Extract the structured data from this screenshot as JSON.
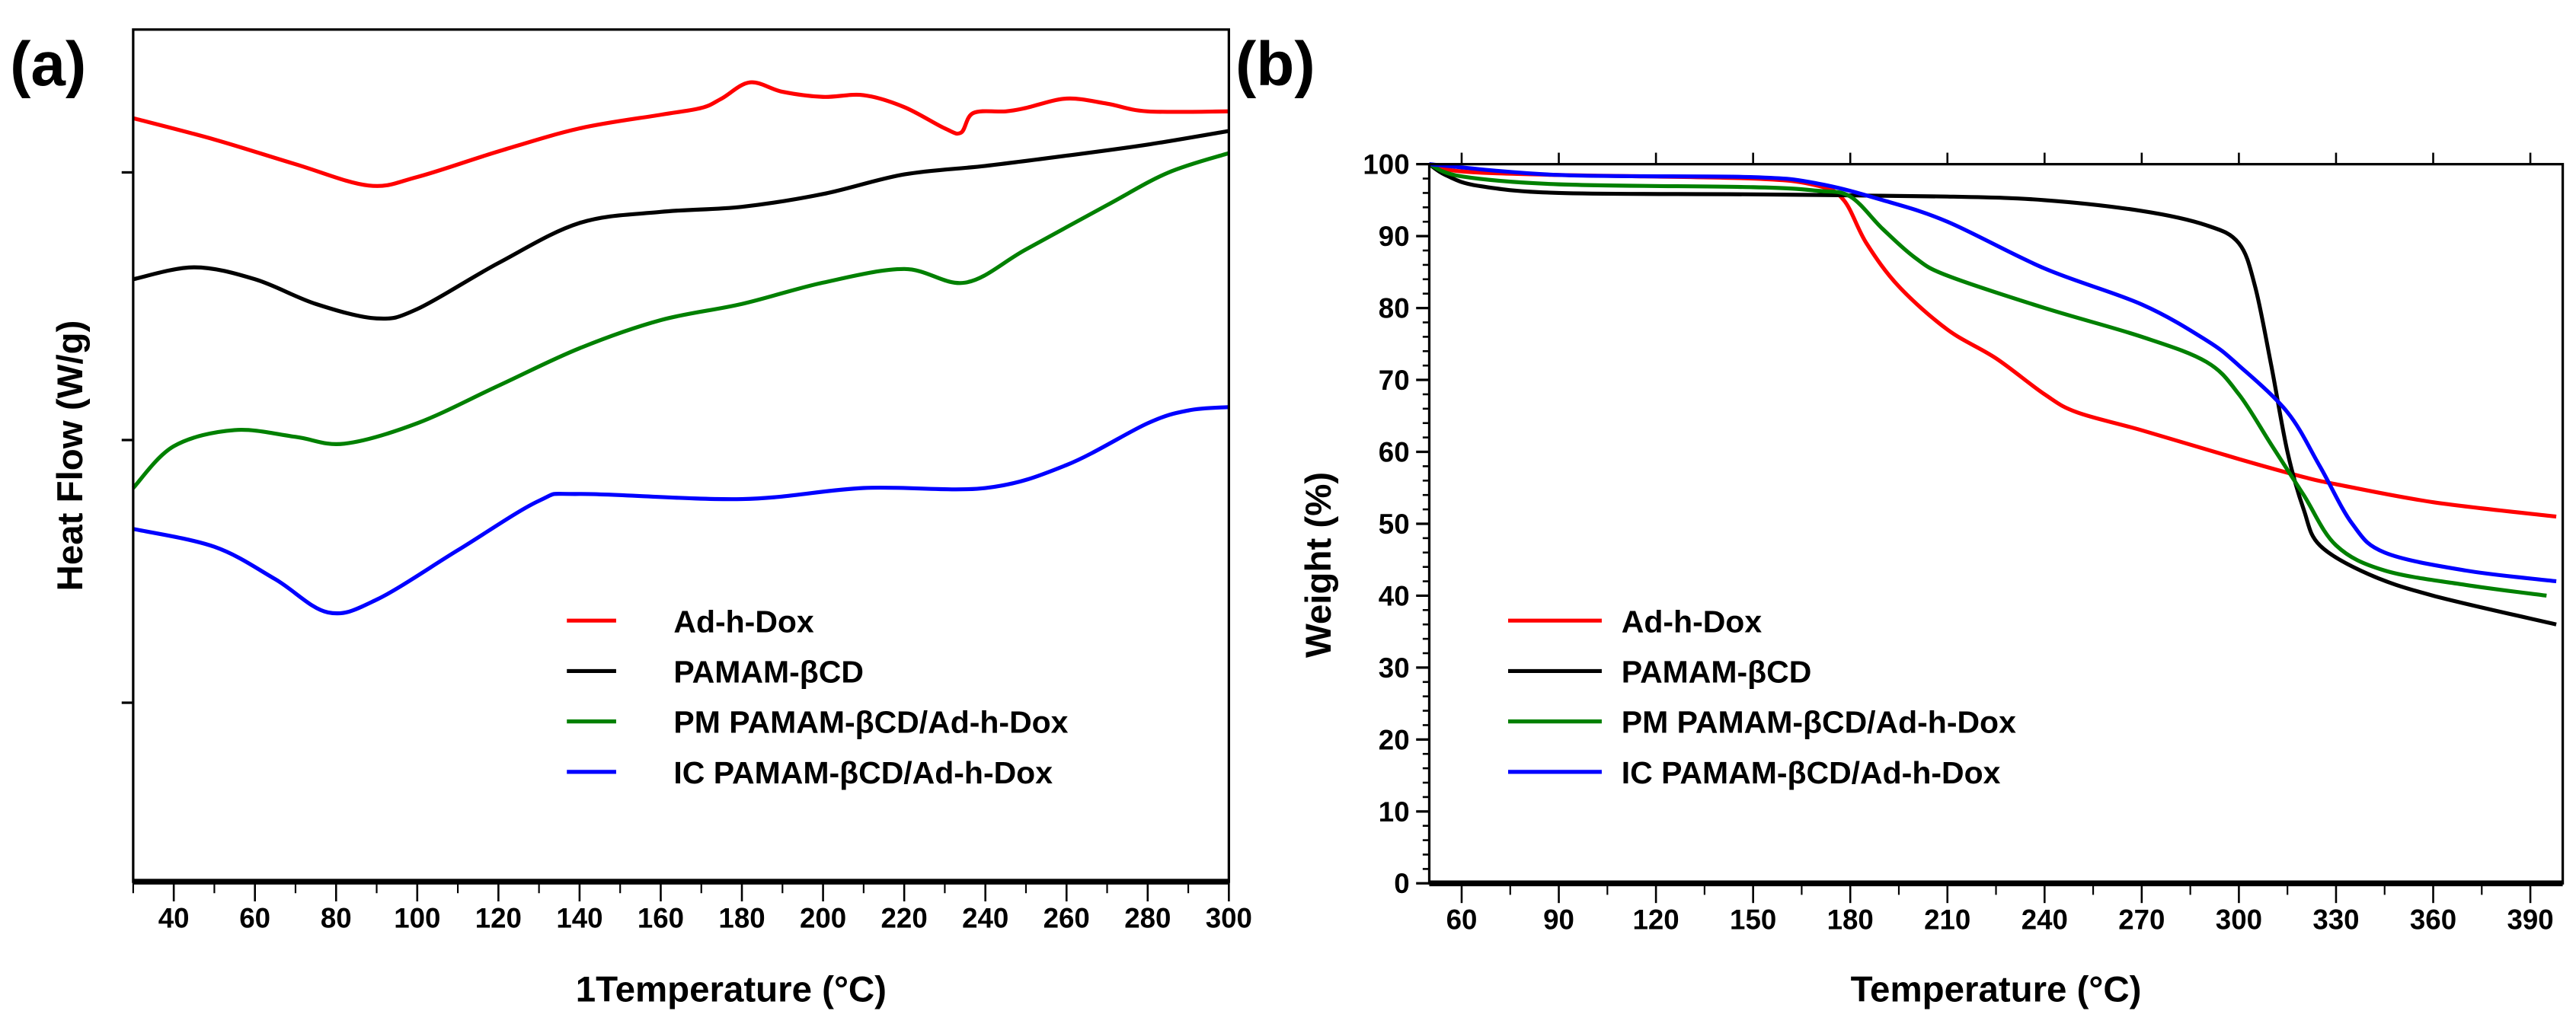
{
  "chart_data": [
    {
      "panel_label": "(a)",
      "type": "line",
      "xlabel": "1Temperature (°C)",
      "ylabel": "Heat Flow (W/g)",
      "xlim": [
        30,
        300
      ],
      "ylim": [
        0,
        100
      ],
      "y_units": "arbitrary (no tick labels)",
      "x_ticks": [
        "40",
        "60",
        "80",
        "100",
        "120",
        "140",
        "160",
        "180",
        "200",
        "220",
        "240",
        "260",
        "280",
        "300"
      ],
      "grid": false,
      "legend_placement": "bottom-center",
      "series": [
        {
          "name": "Ad-h-Dox",
          "color": "#ff0000",
          "x": [
            30,
            50,
            70,
            88,
            100,
            120,
            140,
            160,
            170,
            175,
            182,
            190,
            200,
            210,
            220,
            230,
            234,
            237,
            245,
            250,
            260,
            270,
            280,
            300
          ],
          "y": [
            89.6,
            87.1,
            84.2,
            81.7,
            82.7,
            85.7,
            88.4,
            90.0,
            90.8,
            91.9,
            93.8,
            92.7,
            92.1,
            92.3,
            90.9,
            88.4,
            87.9,
            90.2,
            90.4,
            90.8,
            91.9,
            91.3,
            90.4,
            90.4
          ]
        },
        {
          "name": "PAMAM-βCD",
          "color": "#000000",
          "x": [
            30,
            45,
            60,
            75,
            90,
            100,
            120,
            140,
            160,
            180,
            200,
            220,
            240,
            260,
            280,
            300
          ],
          "y": [
            70.7,
            72.1,
            70.7,
            67.8,
            66.1,
            67.2,
            72.6,
            77.3,
            78.6,
            79.2,
            80.7,
            83.0,
            84.0,
            85.2,
            86.5,
            88.1
          ]
        },
        {
          "name": "PM PAMAM-βCD/Ad-h-Dox",
          "color": "#008000",
          "x": [
            30,
            40,
            55,
            70,
            82,
            100,
            120,
            140,
            160,
            180,
            200,
            220,
            235,
            250,
            270,
            285,
            300
          ],
          "y": [
            46.2,
            51.1,
            53.0,
            52.2,
            51.4,
            53.8,
            58.2,
            62.6,
            65.9,
            67.8,
            70.3,
            71.9,
            70.3,
            74.2,
            79.4,
            83.2,
            85.5
          ]
        },
        {
          "name": "IC PAMAM-βCD/Ad-h-Dox",
          "color": "#0000ff",
          "x": [
            30,
            50,
            65,
            78,
            90,
            110,
            130,
            140,
            180,
            210,
            240,
            260,
            280,
            290,
            300
          ],
          "y": [
            41.4,
            39.3,
            35.5,
            31.6,
            33.1,
            38.9,
            44.7,
            45.5,
            44.9,
            46.2,
            46.2,
            48.9,
            53.8,
            55.3,
            55.7
          ]
        }
      ]
    },
    {
      "panel_label": "(b)",
      "type": "line",
      "xlabel": "Temperature (°C)",
      "ylabel": "Weight (%)",
      "xlim": [
        50,
        400
      ],
      "ylim": [
        0,
        100
      ],
      "x_ticks": [
        "60",
        "90",
        "120",
        "150",
        "180",
        "210",
        "240",
        "270",
        "300",
        "330",
        "360",
        "390"
      ],
      "y_ticks": [
        "0",
        "10",
        "20",
        "30",
        "40",
        "50",
        "60",
        "70",
        "80",
        "90",
        "100"
      ],
      "grid": false,
      "legend_placement": "bottom-left",
      "series": [
        {
          "name": "Ad-h-Dox",
          "color": "#ff0000",
          "x": [
            50,
            60,
            90,
            150,
            170,
            178,
            185,
            195,
            210,
            225,
            240,
            250,
            270,
            300,
            320,
            330,
            360,
            398
          ],
          "y": [
            100,
            99,
            98.5,
            98,
            97,
            95,
            89,
            83,
            77,
            73,
            68,
            65.5,
            63,
            59,
            56.5,
            55.5,
            53,
            51
          ]
        },
        {
          "name": "PAMAM-βCD",
          "color": "#000000",
          "x": [
            50,
            55,
            65,
            90,
            150,
            210,
            240,
            270,
            290,
            300,
            305,
            310,
            315,
            320,
            325,
            340,
            360,
            398
          ],
          "y": [
            100,
            98.5,
            97,
            96,
            95.8,
            95.5,
            95,
            93.5,
            91.5,
            89,
            83,
            72,
            60,
            52,
            47,
            43,
            40,
            36
          ]
        },
        {
          "name": "PM PAMAM-βCD/Ad-h-Dox",
          "color": "#008000",
          "x": [
            50,
            60,
            90,
            150,
            170,
            180,
            190,
            200,
            210,
            240,
            270,
            290,
            300,
            310,
            320,
            330,
            345,
            370,
            395
          ],
          "y": [
            100,
            98.3,
            97.2,
            96.8,
            96.3,
            95.5,
            91,
            87,
            84.5,
            80,
            76,
            72.5,
            68,
            61,
            54,
            47,
            43.5,
            41.5,
            40
          ]
        },
        {
          "name": "IC PAMAM-βCD/Ad-h-Dox",
          "color": "#0000ff",
          "x": [
            50,
            90,
            150,
            170,
            190,
            210,
            240,
            270,
            290,
            300,
            315,
            325,
            335,
            345,
            370,
            398
          ],
          "y": [
            100,
            98.5,
            98.2,
            97.3,
            95,
            92,
            85.5,
            80.5,
            75.5,
            72,
            65.5,
            58,
            50,
            46,
            43.5,
            42
          ]
        }
      ]
    }
  ]
}
